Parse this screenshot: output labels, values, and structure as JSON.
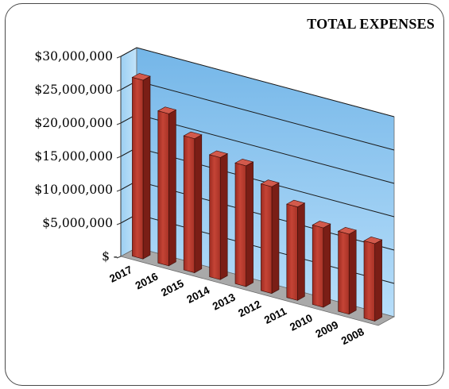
{
  "chart_data": {
    "type": "bar",
    "title": "TOTAL EXPENSES",
    "xlabel": "",
    "ylabel": "",
    "categories": [
      "2017",
      "2016",
      "2015",
      "2014",
      "2013",
      "2012",
      "2011",
      "2010",
      "2009",
      "2008"
    ],
    "values": [
      26800000,
      22800000,
      20100000,
      18300000,
      18100000,
      16000000,
      14000000,
      11900000,
      12000000,
      11600000
    ],
    "ylim": [
      0,
      30000000
    ],
    "yticks": [
      "$-",
      "$5,000,000",
      "$10,000,000",
      "$15,000,000",
      "$20,000,000",
      "$25,000,000",
      "$30,000,000"
    ],
    "grid": true,
    "colors": {
      "bar_front": "#b03a2e",
      "bar_side": "#7a1e16",
      "bar_top": "#d25a4c",
      "back_wall": "#8cc8f0",
      "side_wall": "#a8d6f4",
      "floor": "#a9a9a9"
    }
  }
}
